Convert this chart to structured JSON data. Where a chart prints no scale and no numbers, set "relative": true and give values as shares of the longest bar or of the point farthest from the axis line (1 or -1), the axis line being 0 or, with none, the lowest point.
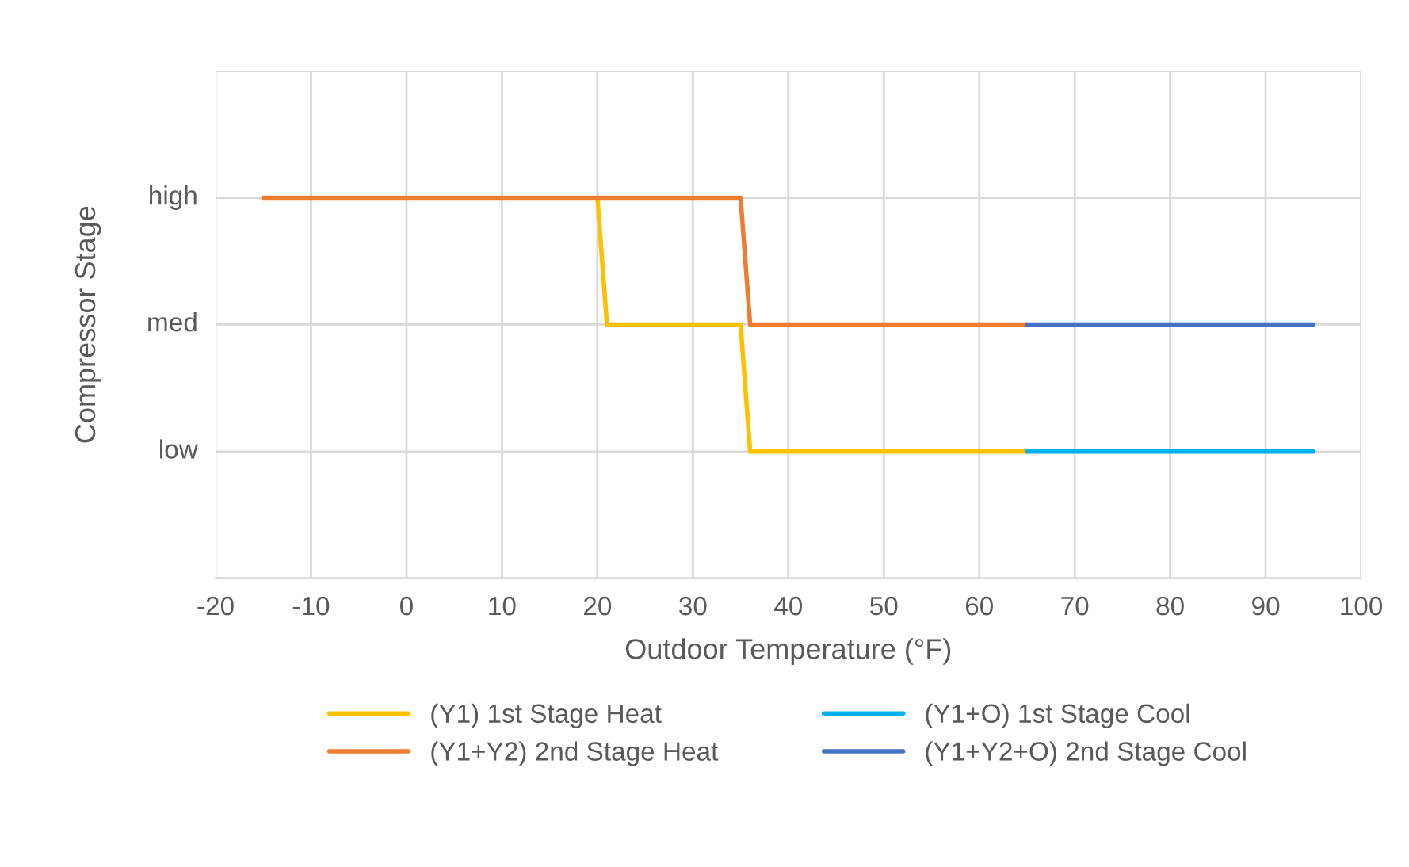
{
  "chart_data": {
    "type": "line",
    "xlabel": "Outdoor Temperature (°F)",
    "ylabel": "Compressor Stage",
    "xlim": [
      -20,
      100
    ],
    "xticks": [
      -20,
      -10,
      0,
      10,
      20,
      30,
      40,
      50,
      60,
      70,
      80,
      90,
      100
    ],
    "relative": true,
    "ylim": [
      0,
      1.333
    ],
    "annotations": [
      "low",
      "med",
      "high"
    ],
    "grid": true,
    "legend": "bottom",
    "marker": "none",
    "line_style": "solid",
    "series": [
      {
        "name": "(Y1) 1st Stage Heat",
        "color": "#ffc000",
        "x": [
          20,
          21,
          35,
          36,
          65
        ],
        "values": [
          1,
          0.667,
          0.667,
          0.333,
          0.333
        ]
      },
      {
        "name": "(Y1+Y2) 2nd Stage Heat",
        "color": "#ed7d31",
        "x": [
          -15,
          35,
          36,
          65
        ],
        "values": [
          1,
          1,
          0.667,
          0.667
        ]
      },
      {
        "name": "(Y1+O) 1st Stage Cool",
        "color": "#00b0f0",
        "x": [
          65,
          95
        ],
        "values": [
          0.333,
          0.333
        ]
      },
      {
        "name": "(Y1+Y2+O) 2nd Stage Cool",
        "color": "#4472c4",
        "x": [
          65,
          95
        ],
        "values": [
          0.667,
          0.667
        ]
      }
    ]
  }
}
